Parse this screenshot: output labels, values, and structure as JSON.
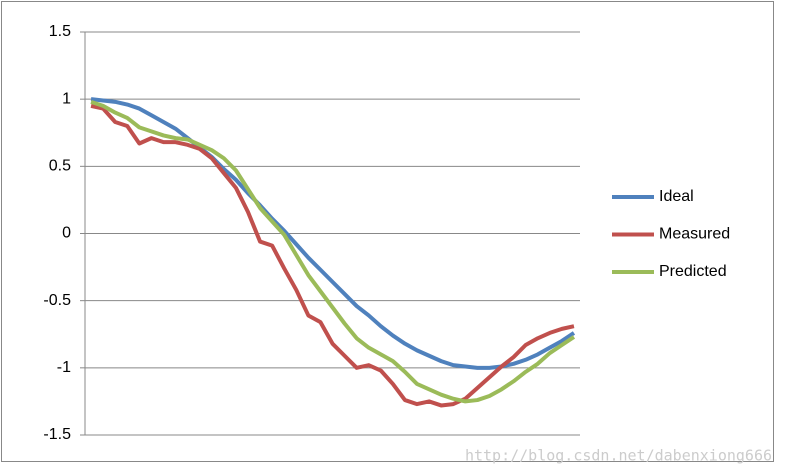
{
  "chart_data": {
    "type": "line",
    "categories": [
      null,
      null,
      null,
      null,
      null,
      null,
      null,
      null,
      null,
      null,
      null,
      null,
      null,
      null,
      null,
      null,
      null,
      null,
      null,
      null,
      null,
      null,
      null,
      null,
      null,
      null,
      null,
      null,
      null,
      null,
      null,
      null,
      null,
      null,
      null,
      null,
      null,
      null,
      null,
      null,
      null
    ],
    "series": [
      {
        "name": "Ideal",
        "color": "#4f81bd",
        "values": [
          1,
          0.99,
          0.98,
          0.96,
          0.93,
          0.88,
          0.83,
          0.78,
          0.71,
          0.64,
          0.57,
          0.48,
          0.4,
          0.3,
          0.21,
          0.11,
          0.02,
          -0.08,
          -0.18,
          -0.27,
          -0.36,
          -0.45,
          -0.54,
          -0.61,
          -0.69,
          -0.76,
          -0.82,
          -0.87,
          -0.91,
          -0.95,
          -0.98,
          -0.99,
          -1.0,
          -1.0,
          -0.99,
          -0.97,
          -0.94,
          -0.9,
          -0.85,
          -0.8,
          -0.74
        ]
      },
      {
        "name": "Measured",
        "color": "#c0504d",
        "values": [
          0.95,
          0.93,
          0.83,
          0.8,
          0.67,
          0.71,
          0.68,
          0.68,
          0.66,
          0.63,
          0.56,
          0.45,
          0.34,
          0.16,
          -0.06,
          -0.09,
          -0.26,
          -0.42,
          -0.61,
          -0.66,
          -0.82,
          -0.91,
          -1.0,
          -0.98,
          -1.02,
          -1.12,
          -1.24,
          -1.27,
          -1.25,
          -1.28,
          -1.27,
          -1.23,
          -1.15,
          -1.07,
          -0.99,
          -0.92,
          -0.83,
          -0.78,
          -0.74,
          -0.71,
          -0.69
        ]
      },
      {
        "name": "Predicted",
        "color": "#9bbb59",
        "values": [
          0.98,
          0.95,
          0.9,
          0.86,
          0.79,
          0.76,
          0.73,
          0.71,
          0.7,
          0.66,
          0.62,
          0.56,
          0.47,
          0.33,
          0.19,
          0.09,
          -0.01,
          -0.16,
          -0.31,
          -0.43,
          -0.55,
          -0.67,
          -0.78,
          -0.85,
          -0.9,
          -0.95,
          -1.03,
          -1.12,
          -1.16,
          -1.2,
          -1.23,
          -1.25,
          -1.24,
          -1.21,
          -1.16,
          -1.1,
          -1.03,
          -0.97,
          -0.89,
          -0.83,
          -0.77
        ]
      }
    ],
    "ylim": [
      -1.5,
      1.5
    ],
    "yticks": [
      -1.5,
      -1,
      -0.5,
      0,
      0.5,
      1,
      1.5
    ],
    "grid": true,
    "legend": "right",
    "watermark": "http://blog.csdn.net/dabenxiong666"
  }
}
